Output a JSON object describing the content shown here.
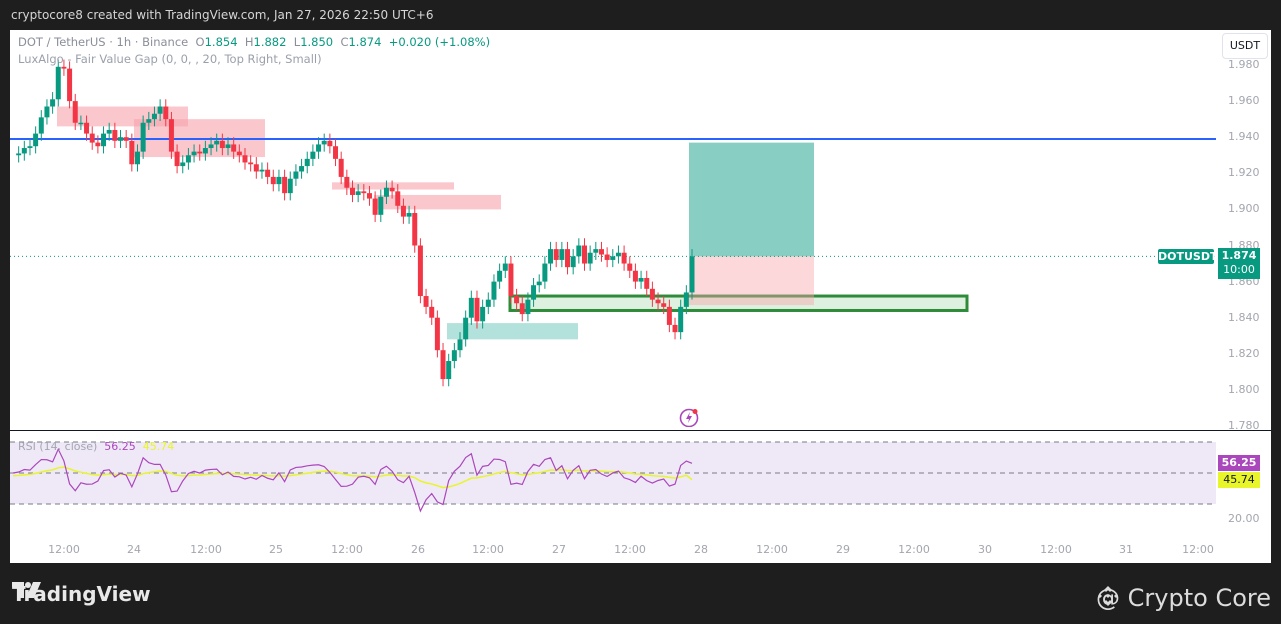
{
  "header": {
    "attribution": "cryptocore8 created with TradingView.com, Jan 27, 2026 22:50 UTC+6"
  },
  "legend": {
    "symbol": "DOT / TetherUS · 1h · Binance",
    "o_label": "O",
    "o": "1.854",
    "h_label": "H",
    "h": "1.882",
    "l_label": "L",
    "l": "1.850",
    "c_label": "C",
    "c": "1.874",
    "change": "+0.020 (+1.08%)",
    "indicator": "LuxAlgo - Fair Value Gap (0, 0, , 20, Top Right, Small)"
  },
  "currency_button": "USDT",
  "price_tag": {
    "symbol": "DOTUSDT",
    "price": "1.874",
    "countdown": "10:00"
  },
  "rsi": {
    "label": "RSI (14, close)",
    "value": "56.25",
    "ma": "45.74",
    "value_color": "#ab47bc",
    "ma_color": "#e8f52a"
  },
  "footer": {
    "brand": "TradingView",
    "watermark": "@ Crypto Core"
  },
  "colors": {
    "up": "#089981",
    "down": "#f23645",
    "hline": "#2962ff"
  },
  "chart_data": {
    "type": "candlestick",
    "title": "DOT / TetherUS · 1h · Binance",
    "ylabel": "USDT",
    "ylim": [
      1.78,
      1.99
    ],
    "y_ticks": [
      "1.980",
      "1.960",
      "1.940",
      "1.920",
      "1.900",
      "1.880",
      "1.860",
      "1.840",
      "1.820",
      "1.800",
      "1.780"
    ],
    "x_ticks": [
      "12:00",
      "24",
      "12:00",
      "25",
      "12:00",
      "26",
      "12:00",
      "27",
      "12:00",
      "28",
      "12:00",
      "29",
      "12:00",
      "30",
      "12:00",
      "31",
      "12:00"
    ],
    "last": {
      "open": 1.854,
      "high": 1.882,
      "low": 1.85,
      "close": 1.874,
      "change": 0.02,
      "change_pct": 1.08
    },
    "horizontal_line": 1.939,
    "fvg_bearish_zones": [
      [
        1.95,
        1.957
      ],
      [
        1.93,
        1.952
      ],
      [
        1.914,
        1.911
      ],
      [
        1.907,
        1.899
      ]
    ],
    "fvg_bullish_zones": [
      [
        1.837,
        1.828
      ]
    ],
    "demand_zone": [
      1.852,
      1.844
    ],
    "long_position": {
      "entry": 1.874,
      "target": 1.937,
      "stop": 1.847
    },
    "rsi": {
      "period": 14,
      "value": 56.25,
      "ma": 45.74,
      "levels": [
        70,
        50,
        30
      ],
      "y_ticks": [
        "20.00"
      ]
    }
  }
}
